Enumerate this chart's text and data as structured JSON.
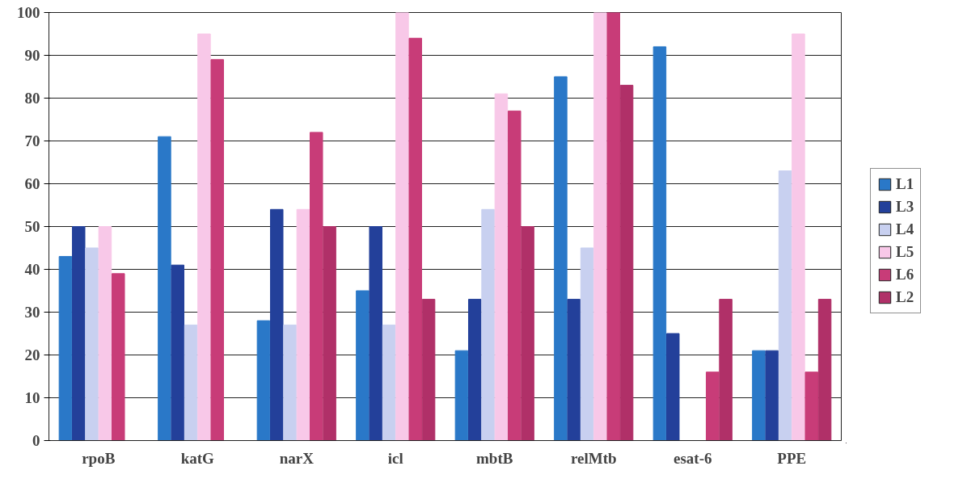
{
  "chart_data": {
    "type": "bar",
    "categories": [
      "rpoB",
      "katG",
      "narX",
      "icl",
      "mbtB",
      "relMtb",
      "esat-6",
      "PPE"
    ],
    "series": [
      {
        "name": "L1",
        "color": "#2a78c8",
        "values": [
          43,
          71,
          28,
          35,
          21,
          85,
          92,
          21
        ]
      },
      {
        "name": "L3",
        "color": "#23409a",
        "values": [
          50,
          41,
          54,
          50,
          33,
          33,
          25,
          21
        ]
      },
      {
        "name": "L4",
        "color": "#c8d0f0",
        "values": [
          45,
          27,
          27,
          27,
          54,
          45,
          0,
          63
        ]
      },
      {
        "name": "L5",
        "color": "#f8c8e8",
        "values": [
          50,
          95,
          54,
          100,
          81,
          100,
          0,
          95
        ]
      },
      {
        "name": "L6",
        "color": "#c83c78",
        "values": [
          39,
          89,
          72,
          94,
          77,
          100,
          16,
          16
        ]
      },
      {
        "name": "L2",
        "color": "#b03068",
        "values": [
          0,
          0,
          50,
          33,
          50,
          83,
          33,
          33
        ]
      }
    ],
    "ylim": [
      0,
      100
    ],
    "yticks": [
      0,
      10,
      20,
      30,
      40,
      50,
      60,
      70,
      80,
      90,
      100
    ],
    "grid": "y",
    "legend": "right"
  }
}
